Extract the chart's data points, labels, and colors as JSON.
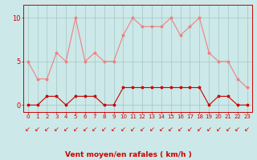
{
  "x": [
    0,
    1,
    2,
    3,
    4,
    5,
    6,
    7,
    8,
    9,
    10,
    11,
    12,
    13,
    14,
    15,
    16,
    17,
    18,
    19,
    20,
    21,
    22,
    23
  ],
  "rafales": [
    5,
    3,
    3,
    6,
    5,
    10,
    5,
    6,
    5,
    5,
    8,
    10,
    9,
    9,
    9,
    10,
    8,
    9,
    10,
    6,
    5,
    5,
    3,
    2
  ],
  "moyen": [
    0,
    0,
    1,
    1,
    0,
    1,
    1,
    1,
    0,
    0,
    2,
    2,
    2,
    2,
    2,
    2,
    2,
    2,
    2,
    0,
    1,
    1,
    0,
    0
  ],
  "rafales_color": "#f08080",
  "moyen_color": "#cc0000",
  "bg_color": "#cce8e8",
  "grid_color": "#aacccc",
  "xlabel": "Vent moyen/en rafales ( km/h )",
  "yticks": [
    0,
    5,
    10
  ],
  "ylim": [
    -0.8,
    11.5
  ],
  "xlim": [
    -0.5,
    23.5
  ],
  "arrow_color": "#cc0000",
  "arrow_char": "↙"
}
